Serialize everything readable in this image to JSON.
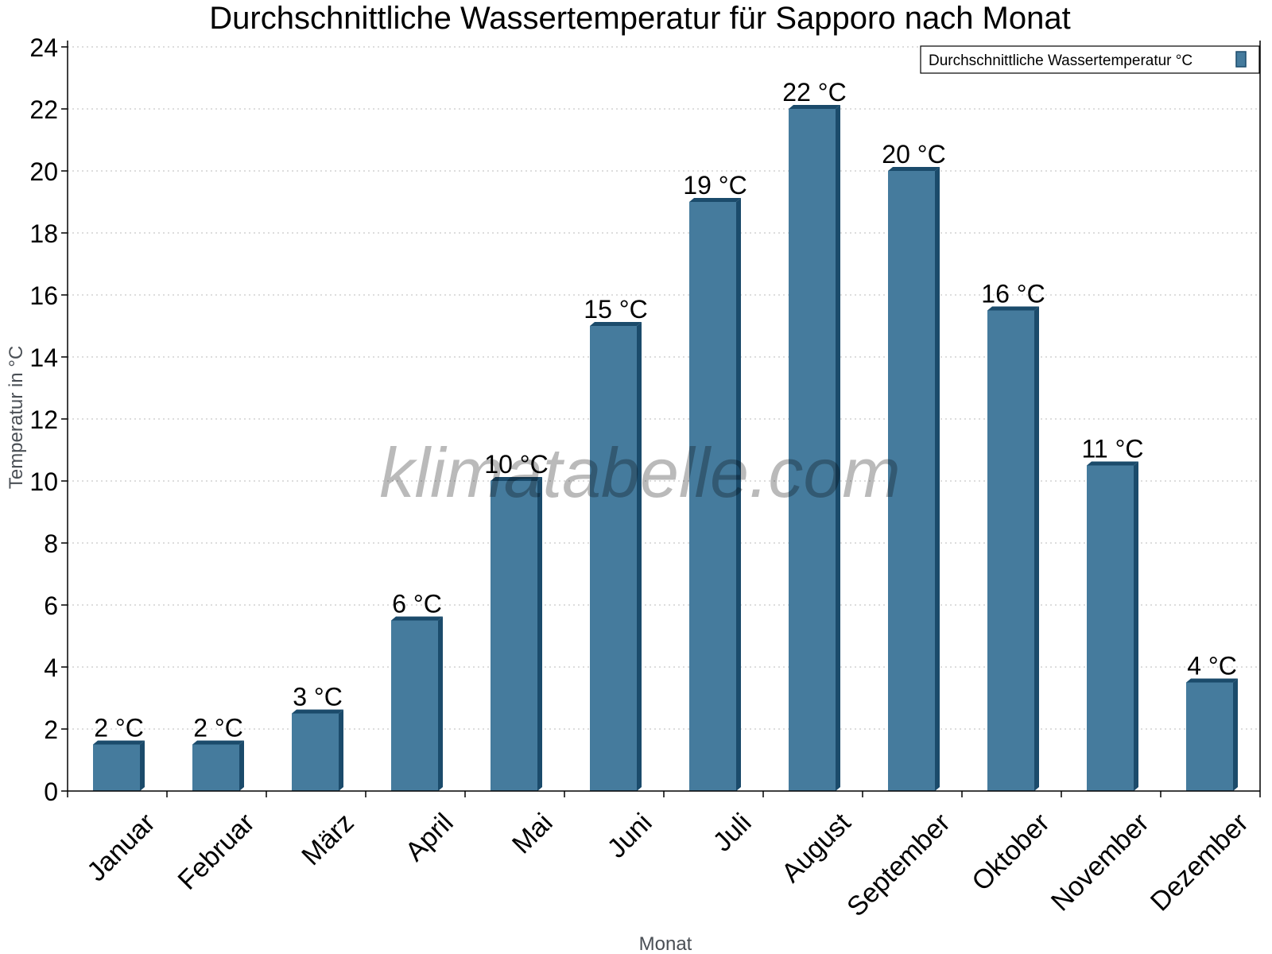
{
  "chart_data": {
    "type": "bar",
    "title": "Durchschnittliche Wassertemperatur für Sapporo nach Monat",
    "xlabel": "Monat",
    "ylabel": "Temperatur in °C",
    "ylim": [
      0,
      24
    ],
    "yticks": [
      0,
      2,
      4,
      6,
      8,
      10,
      12,
      14,
      16,
      18,
      20,
      22,
      24
    ],
    "grid": true,
    "legend_position": "top-right",
    "categories": [
      "Januar",
      "Februar",
      "März",
      "April",
      "Mai",
      "Juni",
      "Juli",
      "August",
      "September",
      "Oktober",
      "November",
      "Dezember"
    ],
    "series": [
      {
        "name": "Durchschnittliche Wassertemperatur °C",
        "color": "#457b9d",
        "side_color": "#1b4b6b",
        "values": [
          1.5,
          1.5,
          2.5,
          5.5,
          10,
          15,
          19,
          22,
          20,
          15.5,
          10.5,
          3.5
        ],
        "labels": [
          "2 °C",
          "2 °C",
          "3 °C",
          "6 °C",
          "10 °C",
          "15 °C",
          "19 °C",
          "22 °C",
          "20 °C",
          "16 °C",
          "11 °C",
          "4 °C"
        ]
      }
    ],
    "watermark": "klimatabelle.com"
  }
}
